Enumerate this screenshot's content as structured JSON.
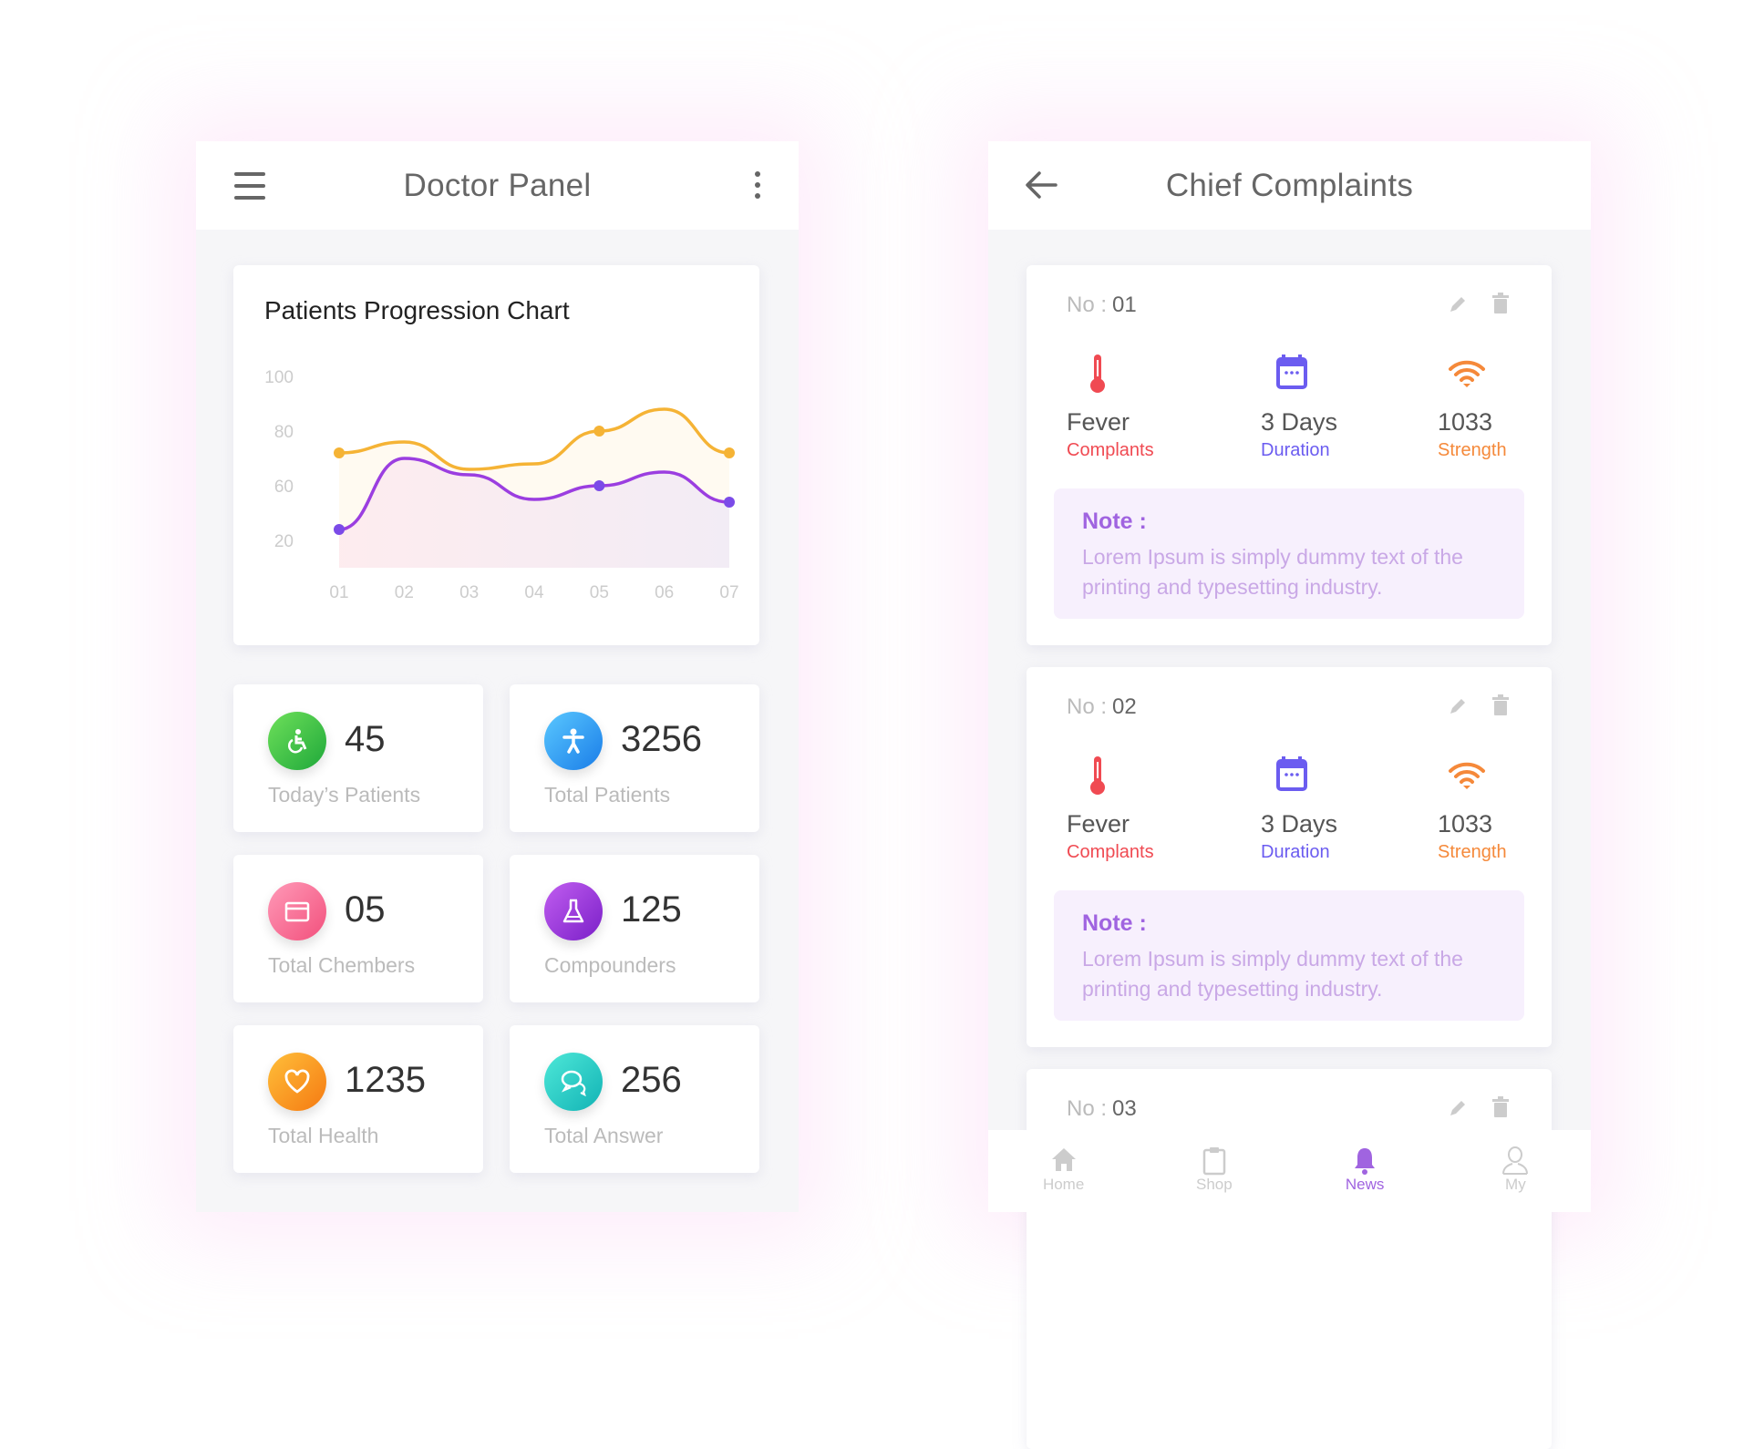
{
  "doctor_panel": {
    "title": "Doctor Panel",
    "chart_data": {
      "type": "line",
      "title": "Patients Progression Chart",
      "categories": [
        "01",
        "02",
        "03",
        "04",
        "05",
        "06",
        "07"
      ],
      "y_ticks": [
        "100",
        "80",
        "60",
        "20"
      ],
      "ylim": [
        40,
        100
      ],
      "grid": false,
      "series": [
        {
          "values": [
            72,
            76,
            66,
            68,
            80,
            88,
            72
          ],
          "color": "#f5b335",
          "markers": [
            0,
            4,
            6
          ]
        },
        {
          "values": [
            44,
            70,
            64,
            55,
            60,
            65,
            54
          ],
          "color": "#9b3ee0",
          "markers": [
            0,
            4,
            6
          ]
        }
      ]
    },
    "stats": [
      {
        "value": "45",
        "label": "Today’s Patients",
        "icon": "wheelchair-icon",
        "color1": "#6ee05a",
        "color2": "#1fa83a"
      },
      {
        "value": "3256",
        "label": "Total Patients",
        "icon": "person-icon",
        "color1": "#5ac8ff",
        "color2": "#1a7de8"
      },
      {
        "value": "05",
        "label": "Total Chembers",
        "icon": "folder-icon",
        "color1": "#ff9ab8",
        "color2": "#f2507c"
      },
      {
        "value": "125",
        "label": "Compounders",
        "icon": "flask-icon",
        "color1": "#c15ef0",
        "color2": "#7a1fc8"
      },
      {
        "value": "1235",
        "label": "Total Health",
        "icon": "heart-icon",
        "color1": "#ffbf3a",
        "color2": "#f57a12"
      },
      {
        "value": "256",
        "label": "Total Answer",
        "icon": "chat-icon",
        "color1": "#4ee8d8",
        "color2": "#12b3b5"
      }
    ]
  },
  "chief_complaints": {
    "title": "Chief Complaints",
    "no_label": "No :",
    "cards": [
      {
        "no": "01",
        "complaint": "Fever",
        "complaint_label": "Complants",
        "duration": "3 Days",
        "duration_label": "Duration",
        "strength": "1033",
        "strength_label": "Strength",
        "note_title": "Note :",
        "note": "Lorem Ipsum is simply dummy text of the printing and typesetting industry."
      },
      {
        "no": "02",
        "complaint": "Fever",
        "complaint_label": "Complants",
        "duration": "3 Days",
        "duration_label": "Duration",
        "strength": "1033",
        "strength_label": "Strength",
        "note_title": "Note :",
        "note": "Lorem Ipsum is simply dummy text of the printing and typesetting industry."
      },
      {
        "no": "03"
      }
    ],
    "colors": {
      "complaint": "#f04a52",
      "duration": "#6b5cf0",
      "strength": "#f5893a",
      "accent": "#a064e0"
    },
    "nav": [
      {
        "label": "Home",
        "icon": "home-icon"
      },
      {
        "label": "Shop",
        "icon": "clipboard-icon"
      },
      {
        "label": "News",
        "icon": "bell-icon",
        "active": true
      },
      {
        "label": "My",
        "icon": "user-icon"
      }
    ]
  }
}
